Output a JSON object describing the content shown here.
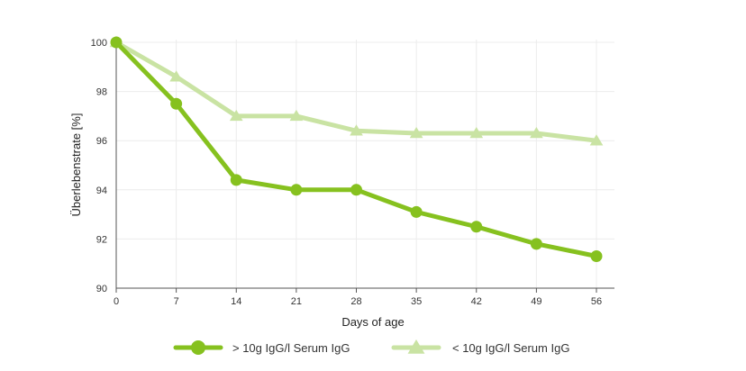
{
  "chart_data": {
    "type": "line",
    "xlabel": "Days of age",
    "ylabel": "Überlebenstrate [%]",
    "x": [
      0,
      7,
      14,
      21,
      28,
      35,
      42,
      49,
      56
    ],
    "xticks": [
      "0",
      "7",
      "14",
      "21",
      "28",
      "35",
      "42",
      "49",
      "56"
    ],
    "xlim": [
      0,
      56
    ],
    "ylim": [
      90,
      100
    ],
    "yticks": [
      "90",
      "92",
      "94",
      "96",
      "98",
      "100"
    ],
    "grid": "horizontal",
    "legend_position": "bottom",
    "series": [
      {
        "name": "> 10g IgG/l Serum IgG",
        "values": [
          100,
          97.5,
          94.4,
          94.0,
          94.0,
          93.1,
          92.5,
          91.8,
          91.3
        ],
        "color": "#86c11f",
        "marker": "circle"
      },
      {
        "name": "< 10g IgG/l Serum IgG",
        "values": [
          100,
          98.6,
          97.0,
          97.0,
          96.4,
          96.3,
          96.3,
          96.3,
          96.0
        ],
        "color": "#c9e3a3",
        "marker": "triangle"
      }
    ]
  }
}
